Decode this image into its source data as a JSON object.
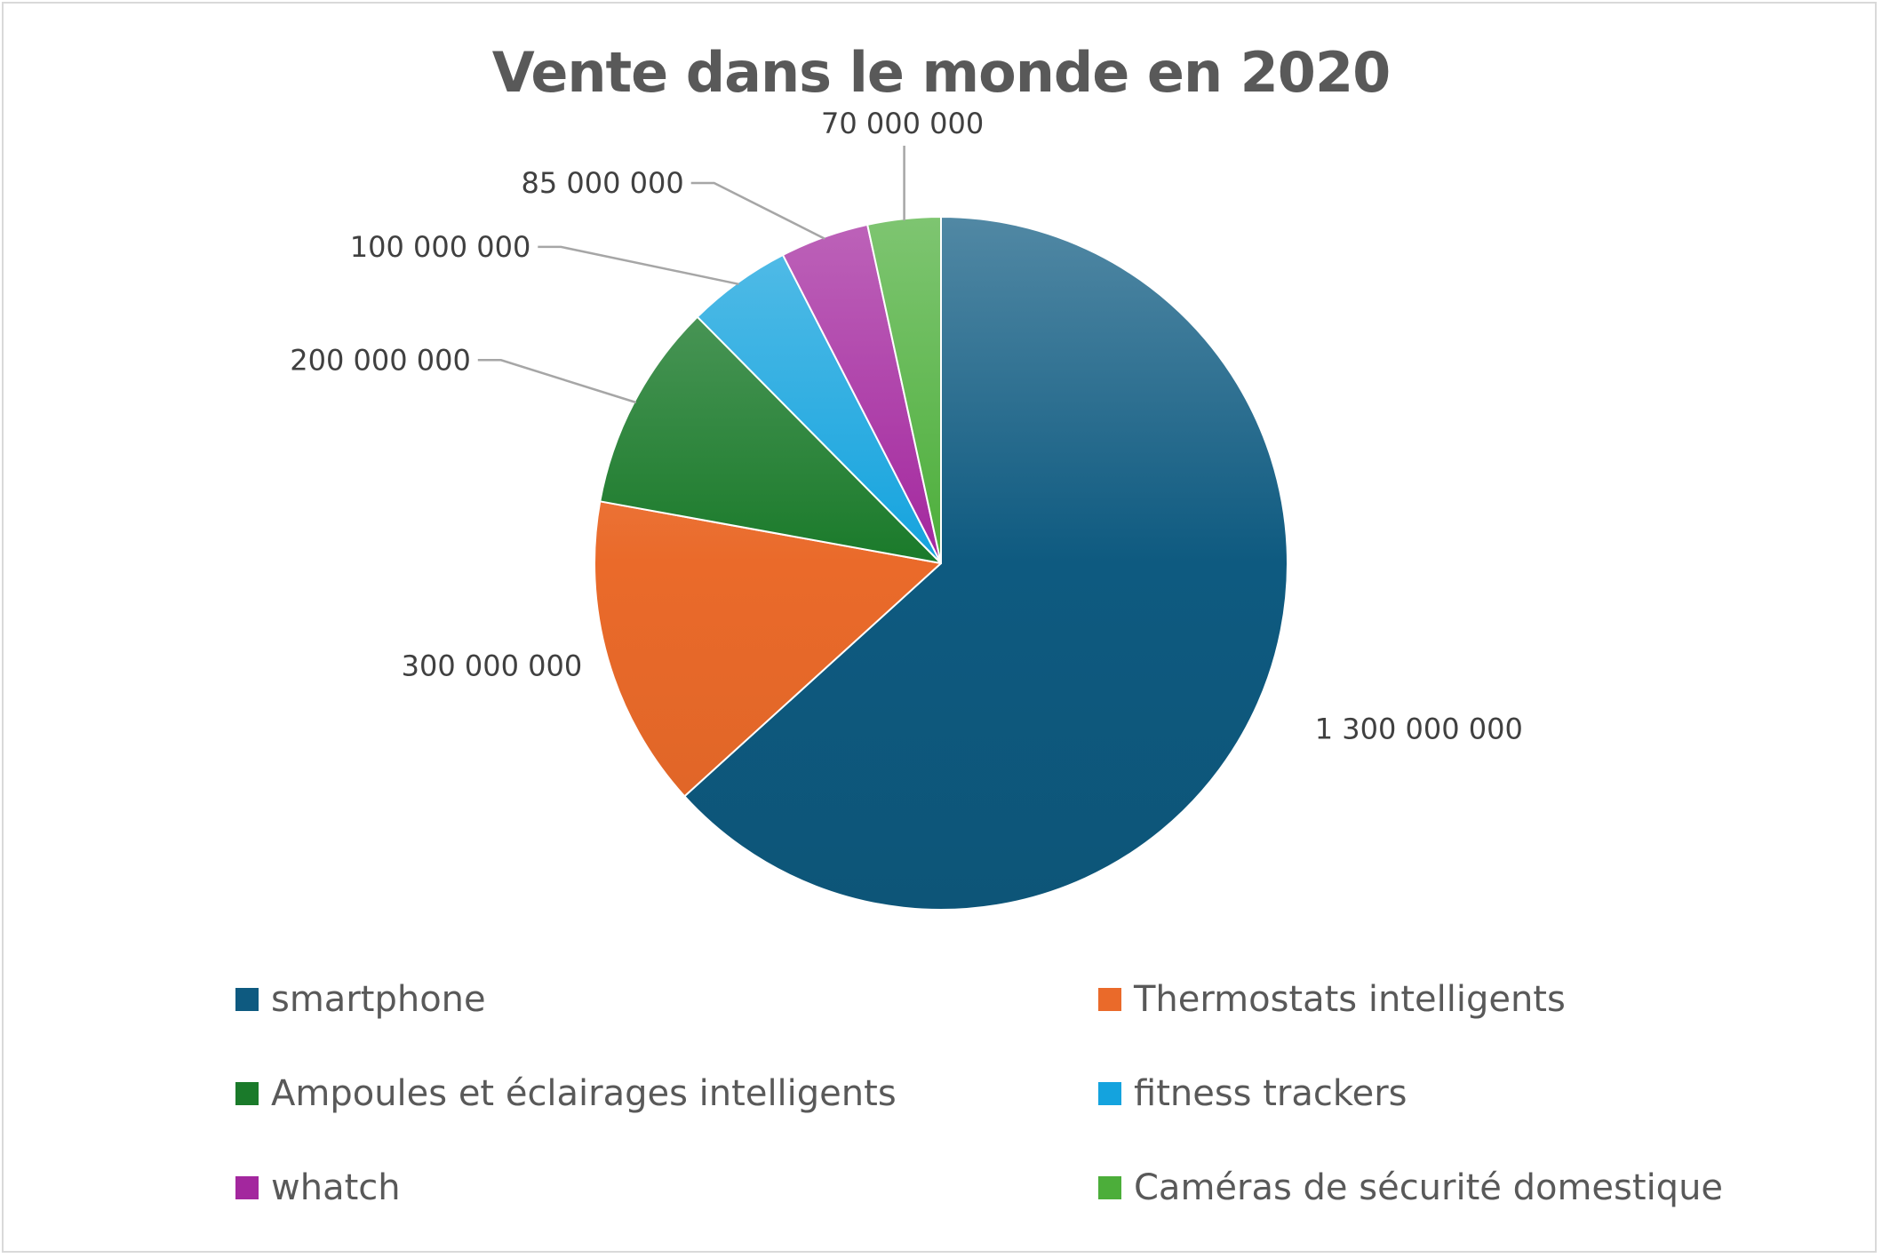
{
  "chart_data": {
    "type": "pie",
    "title": "Vente dans le monde en 2020",
    "categories": [
      "smartphone",
      "Thermostats intelligents",
      "Ampoules et éclairages intelligents",
      "fitness trackers",
      "whatch",
      "Caméras de sécurité domestique"
    ],
    "values": [
      1300000000,
      300000000,
      200000000,
      100000000,
      85000000,
      70000000
    ],
    "data_labels": [
      "1 300 000 000",
      "300 000 000",
      "200 000 000",
      "100 000 000",
      "85 000 000",
      "70 000 000"
    ],
    "colors": [
      "#0e5a80",
      "#ea6a2a",
      "#1a7a2a",
      "#14a3de",
      "#a3279e",
      "#4cae3a"
    ],
    "legend": "bottom",
    "start_angle_deg": 0,
    "direction": "clockwise"
  }
}
